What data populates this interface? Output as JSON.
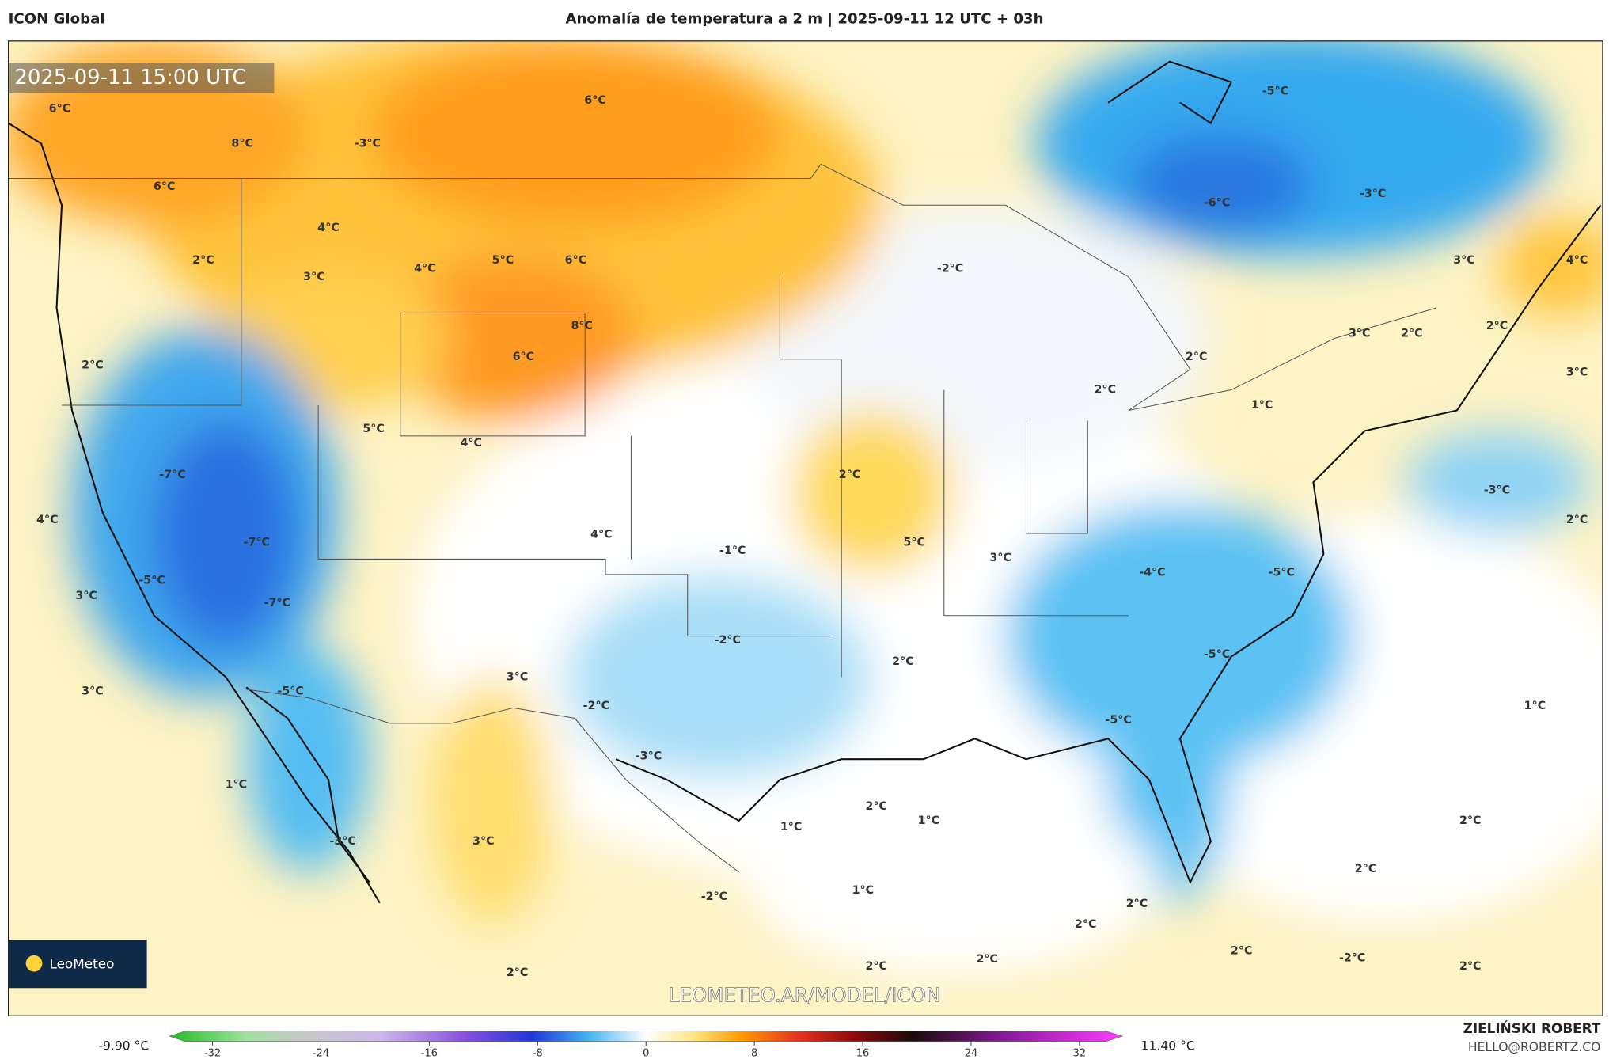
{
  "header": {
    "model": "ICON Global",
    "title": "Anomalía de temperatura a 2 m | 2025-09-11 12 UTC + 03h"
  },
  "map": {
    "valid_time": "2025-09-11 15:00 UTC",
    "labels": [
      "6°C",
      "8°C",
      "-3°C",
      "6°C",
      "6°C",
      "4°C",
      "2°C",
      "3°C",
      "4°C",
      "5°C",
      "6°C",
      "8°C",
      "6°C",
      "2°C",
      "5°C",
      "4°C",
      "-7°C",
      "4°C",
      "-7°C",
      "4°C",
      "-5°C",
      "-7°C",
      "3°C",
      "-1°C",
      "2°C",
      "5°C",
      "3°C",
      "-4°C",
      "-5°C",
      "-2°C",
      "2°C",
      "-5°C",
      "3°C",
      "-5°C",
      "3°C",
      "-2°C",
      "-3°C",
      "-5°C",
      "1°C",
      "1°C",
      "2°C",
      "1°C",
      "1°C",
      "2°C",
      "-3°C",
      "3°C",
      "1°C",
      "2°C",
      "-2°C",
      "2°C",
      "2°C",
      "2°C",
      "-2°C",
      "2°C",
      "2°C",
      "2°C",
      "2°C",
      "-2°C",
      "2°C",
      "2°C",
      "1°C",
      "3°C",
      "2°C",
      "2°C",
      "3°C",
      "4°C",
      "3°C",
      "-5°C",
      "-6°C",
      "-3°C",
      "-3°C",
      "2°C"
    ],
    "logo": "LeoMeteo",
    "watermark": "LEOMETEO.AR/MODEL/ICON"
  },
  "colorbar": {
    "min_label": "-9.90 °C",
    "max_label": "11.40 °C",
    "ticks": [
      -32,
      -24,
      -16,
      -8,
      0,
      8,
      16,
      24,
      32
    ]
  },
  "credits": {
    "author": "ZIELIŃSKI ROBERT",
    "email": "HELLO@ROBERTZ.CO"
  }
}
